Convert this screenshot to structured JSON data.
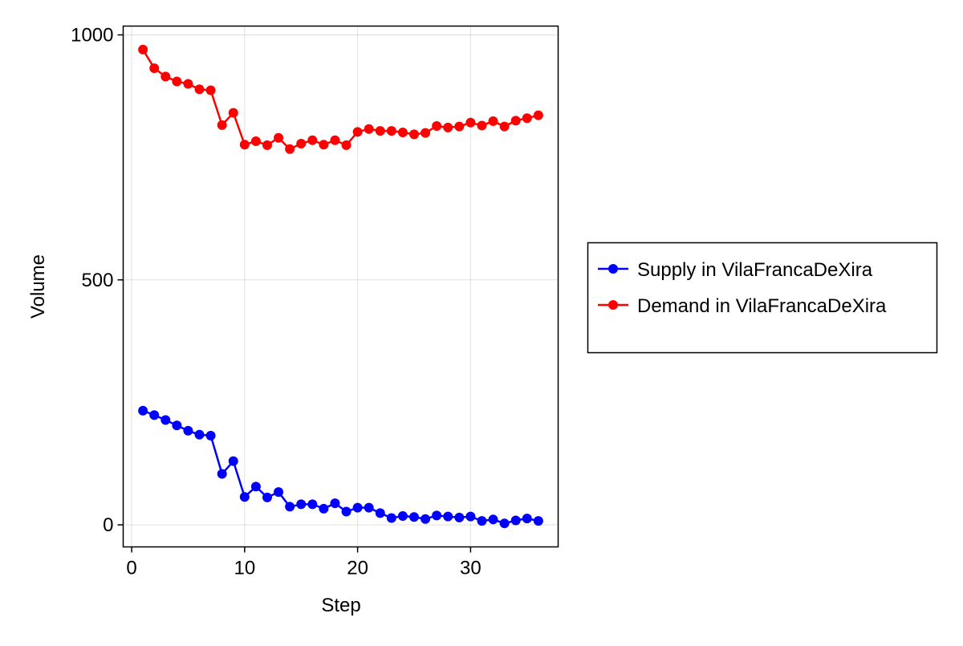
{
  "chart_data": {
    "type": "line",
    "title": "",
    "xlabel": "Step",
    "ylabel": "Volume",
    "xlim": [
      -0.75,
      37.75
    ],
    "ylim": [
      -45,
      1018
    ],
    "xticks": [
      0,
      10,
      20,
      30
    ],
    "yticks": [
      0,
      500,
      1000
    ],
    "grid": true,
    "legend_position": "right",
    "x": [
      1,
      2,
      3,
      4,
      5,
      6,
      7,
      8,
      9,
      10,
      11,
      12,
      13,
      14,
      15,
      16,
      17,
      18,
      19,
      20,
      21,
      22,
      23,
      24,
      25,
      26,
      27,
      28,
      29,
      30,
      31,
      32,
      33,
      34,
      35,
      36
    ],
    "series": [
      {
        "name": "Supply in VilaFrancaDeXira",
        "color": "#0000ff",
        "values": [
          233,
          224,
          214,
          203,
          192,
          184,
          182,
          104,
          130,
          57,
          78,
          56,
          67,
          37,
          42,
          42,
          33,
          44,
          27,
          35,
          35,
          24,
          14,
          18,
          16,
          12,
          19,
          17,
          15,
          17,
          8,
          11,
          3,
          9,
          13,
          8
        ]
      },
      {
        "name": "Demand in VilaFrancaDeXira",
        "color": "#ff0000",
        "values": [
          970,
          932,
          915,
          905,
          900,
          889,
          887,
          816,
          841,
          776,
          783,
          775,
          790,
          767,
          778,
          785,
          776,
          785,
          775,
          802,
          808,
          804,
          804,
          801,
          797,
          800,
          814,
          811,
          813,
          821,
          815,
          824,
          813,
          825,
          830,
          836
        ]
      }
    ]
  }
}
